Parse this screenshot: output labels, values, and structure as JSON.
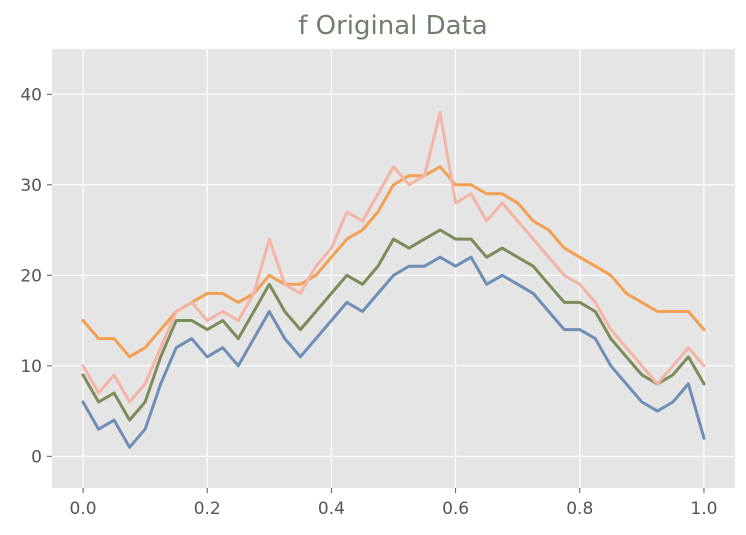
{
  "chart_data": {
    "type": "line",
    "title": "f Original Data",
    "xlabel": "",
    "ylabel": "",
    "xlim": [
      -0.05,
      1.05
    ],
    "ylim": [
      -3.5,
      45
    ],
    "grid": true,
    "x_ticks": [
      0.0,
      0.2,
      0.4,
      0.6,
      0.8,
      1.0
    ],
    "x_tick_labels": [
      "0.0",
      "0.2",
      "0.4",
      "0.6",
      "0.8",
      "1.0"
    ],
    "y_ticks": [
      0,
      10,
      20,
      30,
      40
    ],
    "y_tick_labels": [
      "0",
      "10",
      "20",
      "30",
      "40"
    ],
    "x": [
      0.0,
      0.025,
      0.05,
      0.075,
      0.1,
      0.125,
      0.15,
      0.175,
      0.2,
      0.225,
      0.25,
      0.275,
      0.3,
      0.325,
      0.35,
      0.375,
      0.4,
      0.425,
      0.45,
      0.475,
      0.5,
      0.525,
      0.55,
      0.575,
      0.6,
      0.625,
      0.65,
      0.675,
      0.7,
      0.725,
      0.75,
      0.775,
      0.8,
      0.825,
      0.85,
      0.875,
      0.9,
      0.925,
      0.95,
      0.975,
      1.0
    ],
    "series": [
      {
        "color": "#6f8fb6",
        "values": [
          6,
          3,
          4,
          1,
          3,
          8,
          12,
          13,
          11,
          12,
          10,
          13,
          16,
          13,
          11,
          13,
          15,
          17,
          16,
          18,
          20,
          21,
          21,
          22,
          21,
          22,
          19,
          20,
          19,
          18,
          16,
          14,
          14,
          13,
          10,
          8,
          6,
          5,
          6,
          8,
          2
        ]
      },
      {
        "color": "#7d8c5a",
        "values": [
          9,
          6,
          7,
          4,
          6,
          11,
          15,
          15,
          14,
          15,
          13,
          16,
          19,
          16,
          14,
          16,
          18,
          20,
          19,
          21,
          24,
          23,
          24,
          25,
          24,
          24,
          22,
          23,
          22,
          21,
          19,
          17,
          17,
          16,
          13,
          11,
          9,
          8,
          9,
          11,
          8
        ]
      },
      {
        "color": "#f2a154",
        "values": [
          15,
          13,
          13,
          11,
          12,
          14,
          16,
          17,
          18,
          18,
          17,
          18,
          20,
          19,
          19,
          20,
          22,
          24,
          25,
          27,
          30,
          31,
          31,
          32,
          30,
          30,
          29,
          29,
          28,
          26,
          25,
          23,
          22,
          21,
          20,
          18,
          17,
          16,
          16,
          16,
          14
        ]
      },
      {
        "color": "#f4b5a7",
        "values": [
          10,
          7,
          9,
          6,
          8,
          12,
          16,
          17,
          15,
          16,
          15,
          18,
          24,
          19,
          18,
          21,
          23,
          27,
          26,
          29,
          32,
          30,
          31,
          38,
          28,
          29,
          26,
          28,
          26,
          24,
          22,
          20,
          19,
          17,
          14,
          12,
          10,
          8,
          10,
          12,
          10
        ]
      }
    ]
  }
}
